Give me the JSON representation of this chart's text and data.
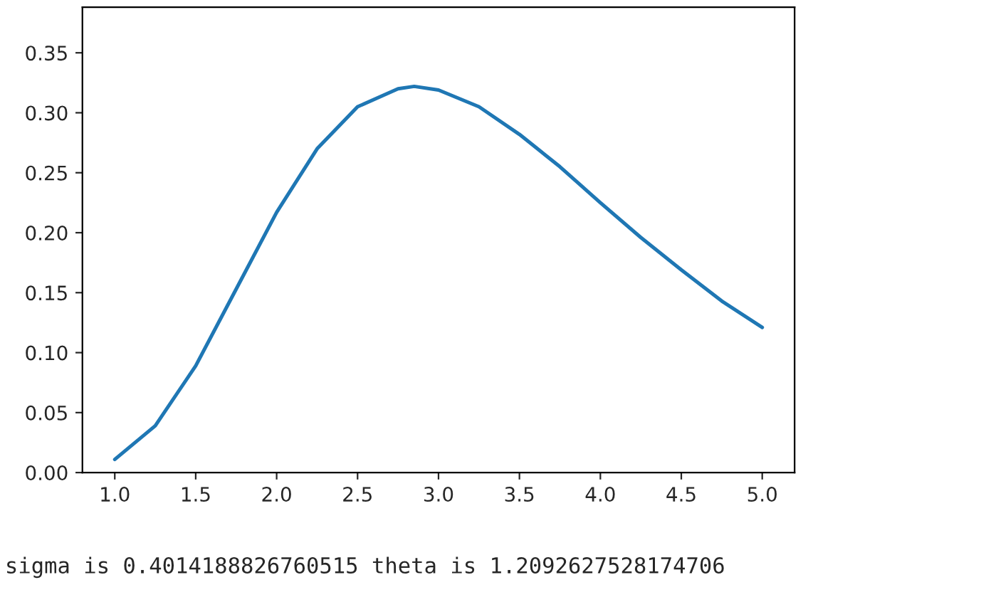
{
  "chart_data": {
    "type": "line",
    "x": [
      1.0,
      1.25,
      1.5,
      1.75,
      2.0,
      2.25,
      2.5,
      2.75,
      2.85,
      3.0,
      3.25,
      3.5,
      3.75,
      4.0,
      4.25,
      4.5,
      4.75,
      5.0
    ],
    "series": [
      {
        "color": "#1f77b4",
        "values": [
          0.011,
          0.039,
          0.089,
          0.153,
          0.217,
          0.27,
          0.305,
          0.32,
          0.322,
          0.319,
          0.305,
          0.282,
          0.255,
          0.225,
          0.196,
          0.169,
          0.143,
          0.121
        ]
      }
    ],
    "xlim": [
      0.8,
      5.2
    ],
    "ylim": [
      0,
      0.388
    ],
    "xticks": [
      {
        "value": 1.0,
        "label": "1.0"
      },
      {
        "value": 1.5,
        "label": "1.5"
      },
      {
        "value": 2.0,
        "label": "2.0"
      },
      {
        "value": 2.5,
        "label": "2.5"
      },
      {
        "value": 3.0,
        "label": "3.0"
      },
      {
        "value": 3.5,
        "label": "3.5"
      },
      {
        "value": 4.0,
        "label": "4.0"
      },
      {
        "value": 4.5,
        "label": "4.5"
      },
      {
        "value": 5.0,
        "label": "5.0"
      }
    ],
    "yticks": [
      {
        "value": 0,
        "label": "0.00"
      },
      {
        "value": 0.05,
        "label": "0.05"
      },
      {
        "value": 0.1,
        "label": "0.10"
      },
      {
        "value": 0.15,
        "label": "0.15"
      },
      {
        "value": 0.2,
        "label": "0.20"
      },
      {
        "value": 0.25,
        "label": "0.25"
      },
      {
        "value": 0.3,
        "label": "0.30"
      },
      {
        "value": 0.35,
        "label": "0.35"
      }
    ],
    "grid": false,
    "legend": false,
    "annotations": [
      "sigma is 0.4014188826760515 theta is 1.2092627528174706"
    ]
  }
}
